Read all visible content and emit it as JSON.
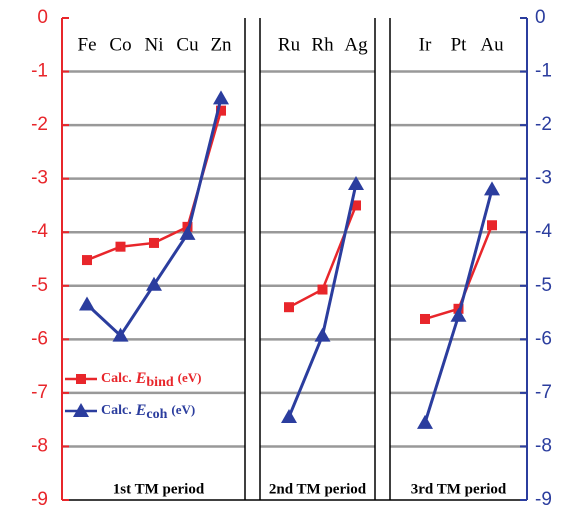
{
  "chart_data": {
    "type": "line",
    "ylim": [
      -9,
      0
    ],
    "yticks": [
      0,
      -1,
      -2,
      -3,
      -4,
      -5,
      -6,
      -7,
      -8,
      -9
    ],
    "y2lim": [
      -9,
      0
    ],
    "y2ticks": [
      0,
      -1,
      -2,
      -3,
      -4,
      -5,
      -6,
      -7,
      -8,
      -9
    ],
    "ycolor": "#e8262b",
    "y2color": "#2b3d9e",
    "grid": true,
    "legend": "lower left",
    "series": [
      {
        "name": {
          "prefix": "Calc.",
          "symbol": "E",
          "subscript": "bind",
          "unit": "(eV)"
        },
        "color": "#e8262b",
        "marker": "square",
        "axis": "y"
      },
      {
        "name": {
          "prefix": "Calc.",
          "symbol": "E",
          "subscript": "coh",
          "unit": "(eV)"
        },
        "color": "#2b3d9e",
        "marker": "triangle",
        "axis": "y2"
      }
    ],
    "panels": [
      {
        "label": "1st TM period",
        "categories": [
          "Fe",
          "Co",
          "Ni",
          "Cu",
          "Zn"
        ],
        "values": [
          [
            -4.52,
            -4.27,
            -4.2,
            -3.9,
            -1.73
          ],
          [
            -5.35,
            -5.93,
            -4.98,
            -4.03,
            -1.5
          ]
        ]
      },
      {
        "label": "2nd TM period",
        "categories": [
          "Ru",
          "Rh",
          "Ag"
        ],
        "values": [
          [
            -5.4,
            -5.07,
            -3.5
          ],
          [
            -7.45,
            -5.93,
            -3.1
          ]
        ]
      },
      {
        "label": "3rd TM period",
        "categories": [
          "Ir",
          "Pt",
          "Au"
        ],
        "values": [
          [
            -5.62,
            -5.43,
            -3.87
          ],
          [
            -7.56,
            -5.56,
            -3.2
          ]
        ]
      }
    ]
  }
}
